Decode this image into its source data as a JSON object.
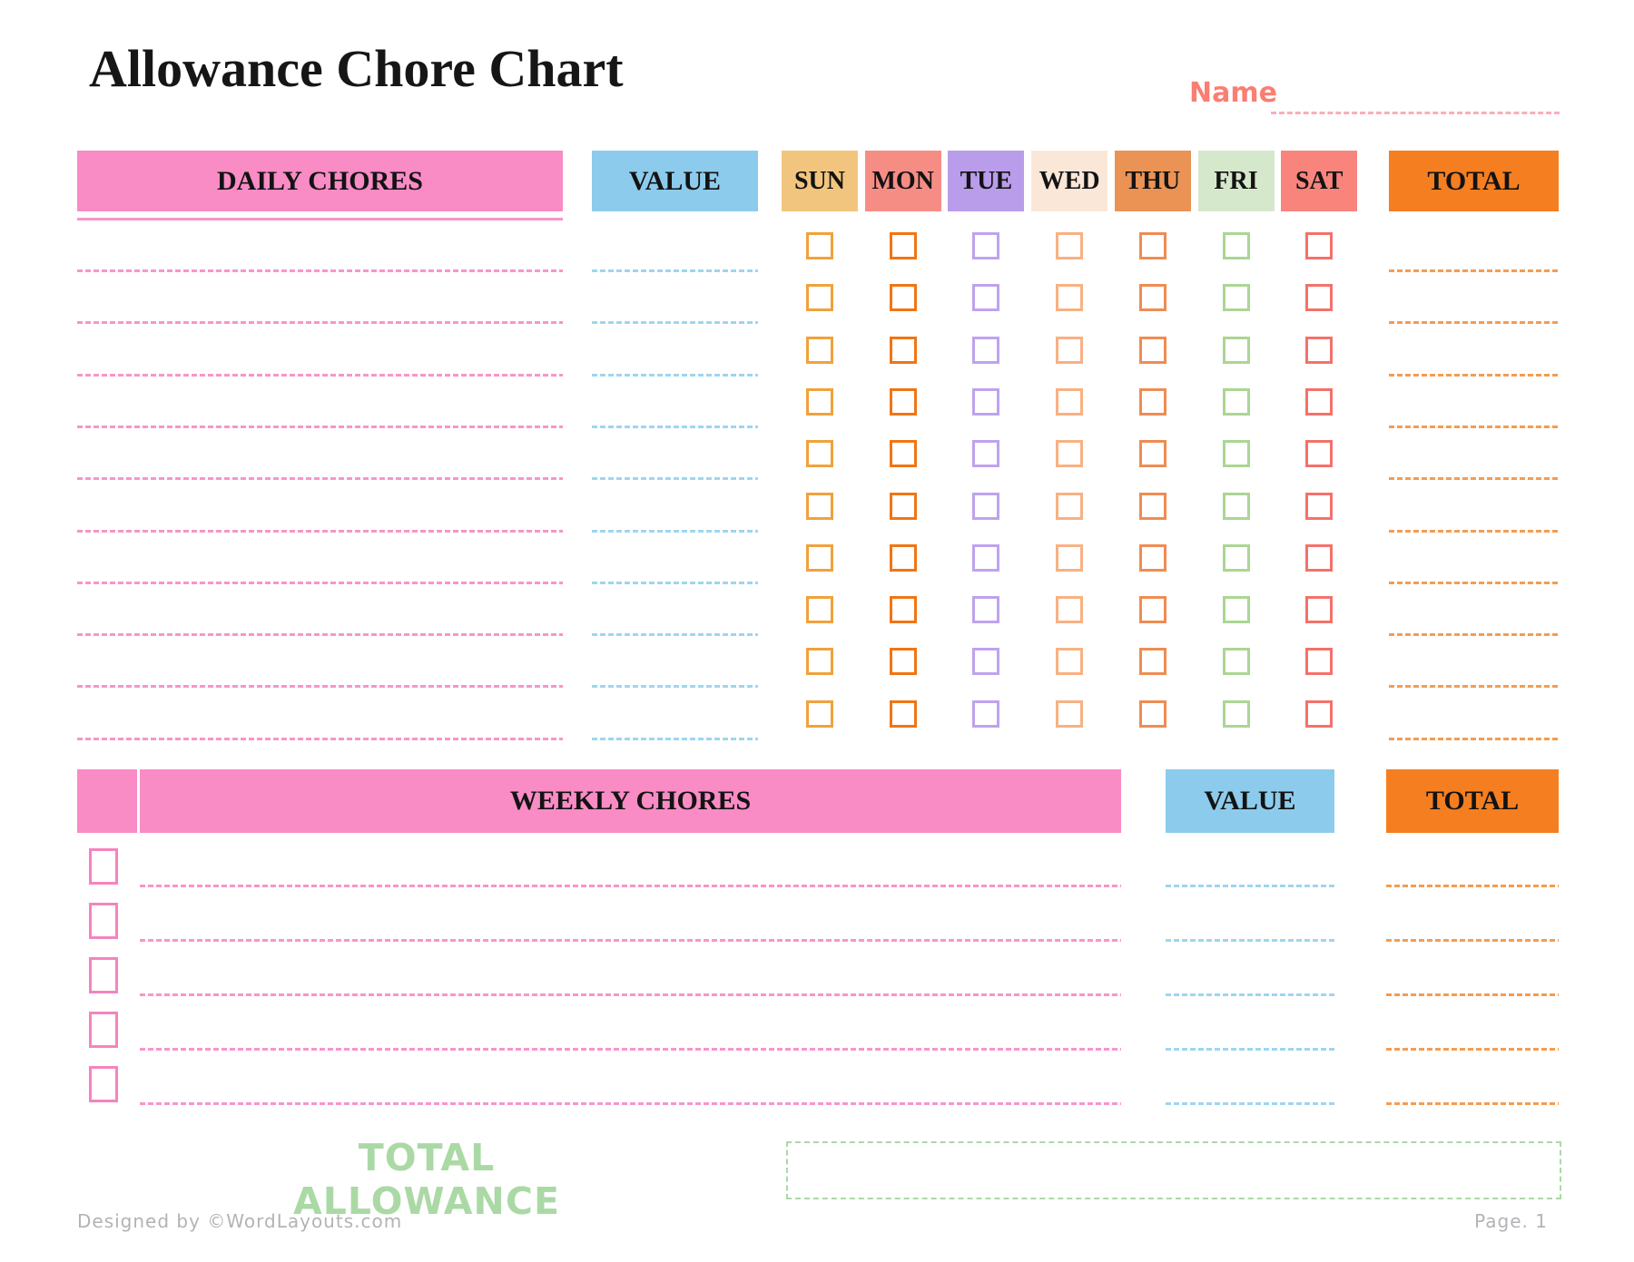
{
  "page": {
    "title": "Allowance Chore Chart",
    "name_label": "Name",
    "name_value": "",
    "footer_left": "Designed by ©WordLayouts.com",
    "footer_right": "Page. 1"
  },
  "daily_table": {
    "chores_header": "DAILY CHORES",
    "value_header": "VALUE",
    "total_header": "TOTAL",
    "num_rows": 10,
    "days": [
      {
        "label": "SUN",
        "header_color": "#F2C57F",
        "checkbox_color": "#F0A23C"
      },
      {
        "label": "MON",
        "header_color": "#F68D85",
        "checkbox_color": "#F07514"
      },
      {
        "label": "TUE",
        "header_color": "#B99CEA",
        "checkbox_color": "#BEA3EE"
      },
      {
        "label": "WED",
        "header_color": "#FBE7D8",
        "checkbox_color": "#F8B183"
      },
      {
        "label": "THU",
        "header_color": "#EA9355",
        "checkbox_color": "#EF8C53"
      },
      {
        "label": "FRI",
        "header_color": "#D5E8CB",
        "checkbox_color": "#ABD693"
      },
      {
        "label": "SAT",
        "header_color": "#F8847C",
        "checkbox_color": "#F4716A"
      }
    ],
    "all_checkboxes_unchecked": true
  },
  "weekly_table": {
    "chores_header": "WEEKLY CHORES",
    "value_header": "VALUE",
    "total_header": "TOTAL",
    "num_rows": 5,
    "checkbox_color": "#F584BE",
    "all_checkboxes_unchecked": true
  },
  "total_allowance": {
    "label": "TOTAL ALLOWANCE",
    "value": ""
  },
  "colors": {
    "pink_header": "#F98BC5",
    "blue_header": "#8DCBEC",
    "orange_header": "#F57E20",
    "pink_dash": "#F895C9",
    "blue_dash": "#9ED5F0",
    "orange_dash": "#F59C51",
    "name_text": "#FA7E72",
    "name_dash": "#F9AEBB",
    "green": "#ABD9A5",
    "footer_gray": "#B3B3B7",
    "title_text": "#161616"
  }
}
